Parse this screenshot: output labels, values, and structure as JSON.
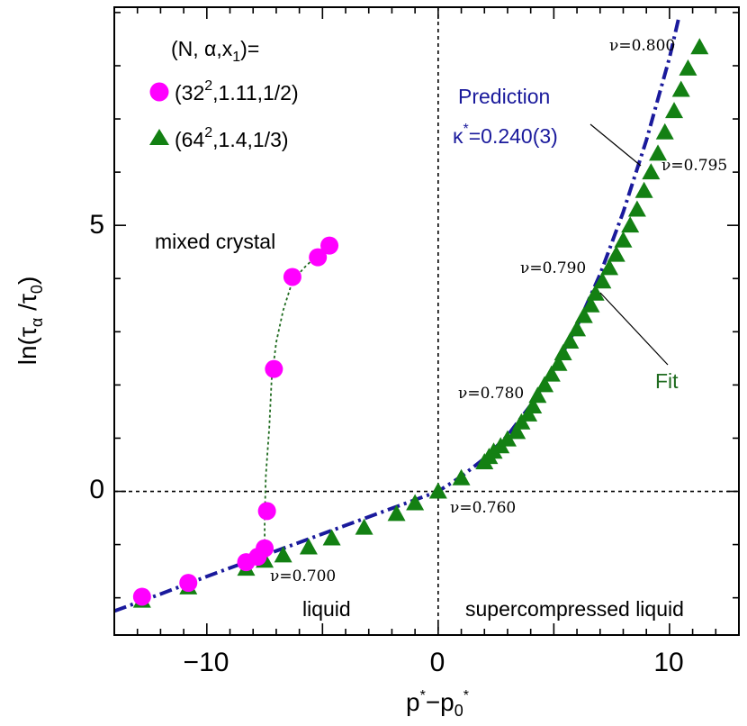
{
  "chart_data": {
    "type": "scatter",
    "xlabel": "p*−p0*",
    "ylabel": "ln(τα /τ0)",
    "xlim": [
      -14,
      13
    ],
    "ylim": [
      -2.7,
      9.1
    ],
    "xticks": [
      -10,
      0,
      10
    ],
    "yticks": [
      0,
      5
    ],
    "xtick_labels": [
      "−10",
      "0",
      "10"
    ],
    "ytick_labels": [
      "0",
      "5"
    ],
    "grid": false,
    "legend": {
      "title": "(N, α,x1)=",
      "placement": "top-left",
      "entries": [
        "(322,1.11,1/2)",
        "(642,1.4,1/3)"
      ]
    },
    "series": [
      {
        "name": "(322,1.11,1/2)",
        "marker": "circle",
        "color": "#ff00ff",
        "x": [
          -12.8,
          -10.8,
          -8.3,
          -7.8,
          -7.5,
          -7.4,
          -7.1,
          -6.3,
          -5.2,
          -4.7
        ],
        "y": [
          -1.98,
          -1.72,
          -1.33,
          -1.23,
          -1.07,
          -0.37,
          2.3,
          4.03,
          4.4,
          4.62
        ]
      },
      {
        "name": "(642,1.4,1/3)",
        "marker": "triangle",
        "color": "#138013",
        "x": [
          -12.8,
          -10.8,
          -8.3,
          -7.5,
          -6.7,
          -5.6,
          -4.6,
          -3.2,
          -1.8,
          -1.0,
          0,
          1.0,
          2.0,
          2.2,
          2.4,
          2.7,
          3.0,
          3.4,
          3.6,
          3.9,
          4.1,
          4.3,
          4.6,
          4.9,
          5.2,
          5.4,
          5.7,
          6.0,
          6.3,
          6.6,
          6.8,
          7.1,
          7.4,
          7.7,
          8.0,
          8.3,
          8.6,
          8.9,
          9.2,
          9.5,
          9.8,
          10.2,
          10.5,
          10.8,
          11.3
        ],
        "y": [
          -2.05,
          -1.8,
          -1.45,
          -1.3,
          -1.2,
          -1.05,
          -0.88,
          -0.68,
          -0.42,
          -0.22,
          0.0,
          0.25,
          0.55,
          0.65,
          0.75,
          0.85,
          0.98,
          1.12,
          1.3,
          1.45,
          1.6,
          1.8,
          2.0,
          2.2,
          2.4,
          2.6,
          2.82,
          3.05,
          3.3,
          3.5,
          3.72,
          3.95,
          4.2,
          4.45,
          4.72,
          5.0,
          5.3,
          5.65,
          6.0,
          6.35,
          6.75,
          7.15,
          7.55,
          7.95,
          8.35
        ]
      }
    ],
    "curves": [
      {
        "name": "Prediction κ*=0.240(3)",
        "style": "dash-dot",
        "color": "#1a1a9c",
        "x": [
          -14,
          -12,
          -10,
          -8,
          -6,
          -4,
          -2,
          0,
          1,
          2,
          3,
          4,
          5,
          6,
          7,
          8,
          9,
          10,
          10.4
        ],
        "y": [
          -2.25,
          -1.93,
          -1.6,
          -1.28,
          -0.96,
          -0.64,
          -0.32,
          0.0,
          0.28,
          0.62,
          1.05,
          1.62,
          2.3,
          3.1,
          4.08,
          5.25,
          6.6,
          8.15,
          8.9
        ]
      },
      {
        "name": "mixed crystal guide",
        "style": "dotted",
        "color": "#1f6b1f",
        "x": [
          -7.5,
          -7.5,
          -7.45,
          -7.3,
          -7.2,
          -7.0,
          -6.7,
          -6.3,
          -5.8,
          -5.2,
          -4.7
        ],
        "y": [
          -1.05,
          -0.5,
          0.3,
          1.2,
          2.1,
          2.8,
          3.4,
          3.95,
          4.2,
          4.45,
          4.62
        ]
      }
    ],
    "reference_lines": {
      "vertical_x": 0,
      "horizontal_y": 0
    },
    "annotations": {
      "prediction_title": "Prediction",
      "prediction_kappa": "κ*=0.240(3)",
      "fit": "Fit",
      "mixed_crystal": "mixed crystal",
      "liquid": "liquid",
      "supercompressed": "supercompressed liquid",
      "nu_800": "ν=0.800",
      "nu_795": "ν=0.795",
      "nu_790": "ν=0.790",
      "nu_780": "ν=0.780",
      "nu_760": "ν=0.760",
      "nu_700": "ν=0.700"
    }
  }
}
